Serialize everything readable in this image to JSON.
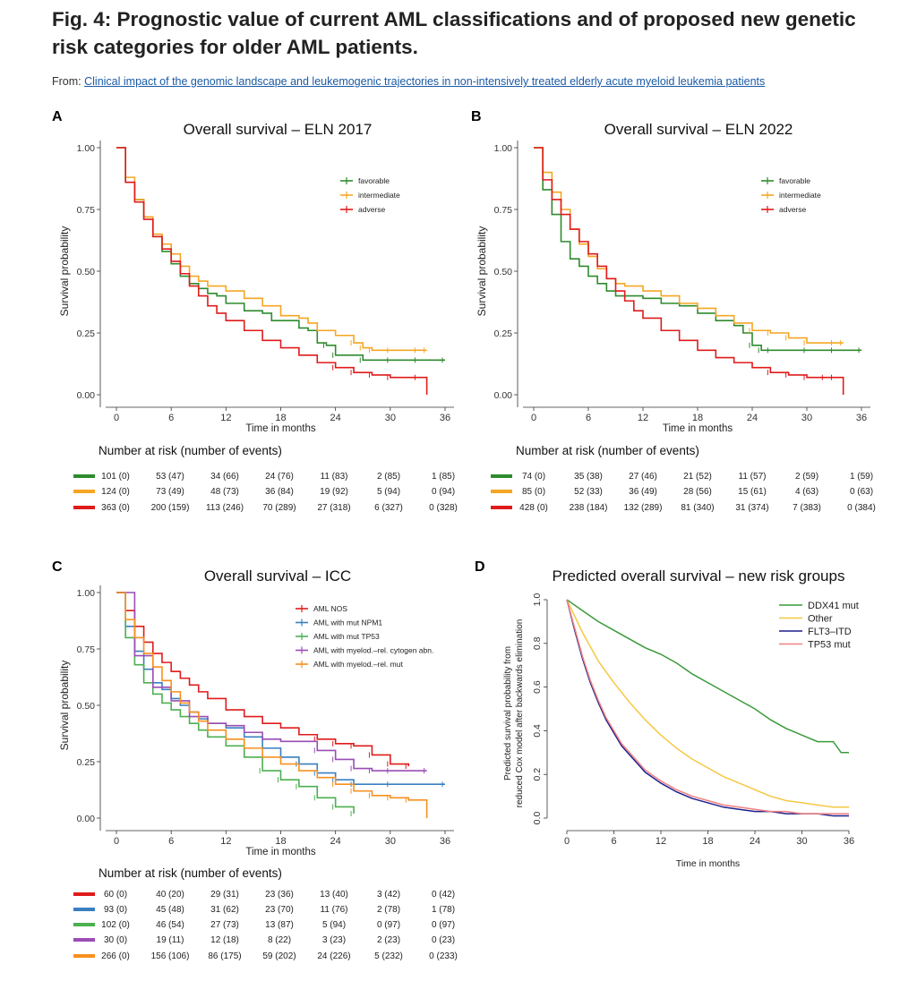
{
  "figure": {
    "title": "Fig. 4: Prognostic value of current AML classifications and of proposed new genetic risk categories for older AML patients.",
    "from_label": "From:",
    "source_link": "Clinical impact of the genomic landscape and leukemogenic trajectories in non-intensively treated elderly acute myeloid leukemia patients"
  },
  "colors": {
    "green": "#2e8b2e",
    "orange": "#f5a623",
    "red": "#e01b1b",
    "blue": "#3a7fc1",
    "lightgreen": "#4caf50",
    "purple": "#9b4db5",
    "orange2": "#f7901e",
    "darkblue": "#1f1f8c",
    "salmon": "#f08080",
    "dgreen": "#3a9a3a",
    "yellow": "#f5c842"
  },
  "chart_data": [
    {
      "panel": "A",
      "type": "line",
      "title": "Overall survival – ELN 2017",
      "xlabel": "Time in months",
      "ylabel": "Survival probability",
      "xlim": [
        0,
        36
      ],
      "ylim": [
        0,
        1
      ],
      "xticks": [
        "0",
        "6",
        "12",
        "18",
        "24",
        "30",
        "36"
      ],
      "yticks": [
        "0.00",
        "0.25",
        "0.50",
        "0.75",
        "1.00"
      ],
      "legend_position": "top-right",
      "series": [
        {
          "name": "favorable",
          "color": "green",
          "x": [
            0,
            1,
            2,
            3,
            4,
            5,
            6,
            7,
            8,
            9,
            10,
            11,
            12,
            14,
            16,
            17,
            18,
            20,
            21,
            22,
            23,
            24,
            27,
            30,
            33,
            36
          ],
          "y": [
            1,
            0.86,
            0.79,
            0.72,
            0.64,
            0.58,
            0.53,
            0.48,
            0.45,
            0.43,
            0.41,
            0.4,
            0.37,
            0.34,
            0.33,
            0.3,
            0.3,
            0.27,
            0.26,
            0.21,
            0.2,
            0.16,
            0.14,
            0.14,
            0.14,
            0.14
          ]
        },
        {
          "name": "intermediate",
          "color": "orange",
          "x": [
            0,
            1,
            2,
            3,
            4,
            5,
            6,
            7,
            8,
            9,
            10,
            12,
            14,
            16,
            18,
            20,
            21,
            22,
            24,
            26,
            27,
            28,
            30,
            33,
            34
          ],
          "y": [
            1,
            0.88,
            0.79,
            0.72,
            0.65,
            0.61,
            0.57,
            0.52,
            0.48,
            0.46,
            0.44,
            0.42,
            0.39,
            0.36,
            0.32,
            0.31,
            0.29,
            0.26,
            0.24,
            0.21,
            0.19,
            0.18,
            0.18,
            0.18,
            0.18
          ]
        },
        {
          "name": "adverse",
          "color": "red",
          "x": [
            0,
            1,
            2,
            3,
            4,
            5,
            6,
            7,
            8,
            9,
            10,
            11,
            12,
            14,
            16,
            18,
            20,
            22,
            24,
            26,
            28,
            30,
            33,
            34
          ],
          "y": [
            1,
            0.86,
            0.78,
            0.71,
            0.64,
            0.59,
            0.54,
            0.49,
            0.44,
            0.4,
            0.36,
            0.33,
            0.3,
            0.26,
            0.22,
            0.19,
            0.16,
            0.13,
            0.11,
            0.09,
            0.08,
            0.07,
            0.07,
            0.0
          ]
        }
      ],
      "risk_table": {
        "title": "Number at risk (number of events)",
        "rows": [
          {
            "color": "green",
            "values": [
              "101 (0)",
              "53 (47)",
              "34 (66)",
              "24 (76)",
              "11 (83)",
              "2 (85)",
              "1 (85)"
            ]
          },
          {
            "color": "orange",
            "values": [
              "124 (0)",
              "73 (49)",
              "48 (73)",
              "36 (84)",
              "19 (92)",
              "5 (94)",
              "0 (94)"
            ]
          },
          {
            "color": "red",
            "values": [
              "363 (0)",
              "200 (159)",
              "113 (246)",
              "70 (289)",
              "27 (318)",
              "6 (327)",
              "0 (328)"
            ]
          }
        ]
      }
    },
    {
      "panel": "B",
      "type": "line",
      "title": "Overall survival – ELN 2022",
      "xlabel": "Time in months",
      "ylabel": "Survival probability",
      "xlim": [
        0,
        36
      ],
      "ylim": [
        0,
        1
      ],
      "xticks": [
        "0",
        "6",
        "12",
        "18",
        "24",
        "30",
        "36"
      ],
      "yticks": [
        "0.00",
        "0.25",
        "0.50",
        "0.75",
        "1.00"
      ],
      "legend_position": "top-right",
      "series": [
        {
          "name": "favorable",
          "color": "green",
          "x": [
            0,
            1,
            2,
            3,
            4,
            5,
            6,
            7,
            8,
            9,
            10,
            12,
            14,
            16,
            18,
            20,
            22,
            23,
            24,
            25,
            26,
            30,
            33,
            36
          ],
          "y": [
            1,
            0.83,
            0.73,
            0.62,
            0.55,
            0.52,
            0.48,
            0.45,
            0.42,
            0.4,
            0.4,
            0.39,
            0.37,
            0.36,
            0.33,
            0.3,
            0.28,
            0.25,
            0.2,
            0.18,
            0.18,
            0.18,
            0.18,
            0.18
          ]
        },
        {
          "name": "intermediate",
          "color": "orange",
          "x": [
            0,
            1,
            2,
            3,
            4,
            5,
            6,
            7,
            8,
            9,
            10,
            12,
            14,
            16,
            18,
            20,
            22,
            24,
            26,
            28,
            30,
            33,
            34
          ],
          "y": [
            1,
            0.9,
            0.82,
            0.75,
            0.67,
            0.61,
            0.56,
            0.51,
            0.47,
            0.45,
            0.44,
            0.42,
            0.4,
            0.37,
            0.35,
            0.32,
            0.29,
            0.26,
            0.25,
            0.23,
            0.21,
            0.21,
            0.21
          ]
        },
        {
          "name": "adverse",
          "color": "red",
          "x": [
            0,
            1,
            2,
            3,
            4,
            5,
            6,
            7,
            8,
            9,
            10,
            11,
            12,
            14,
            16,
            18,
            20,
            22,
            24,
            26,
            28,
            30,
            32,
            33,
            34
          ],
          "y": [
            1,
            0.87,
            0.79,
            0.73,
            0.67,
            0.62,
            0.57,
            0.52,
            0.47,
            0.42,
            0.38,
            0.34,
            0.31,
            0.26,
            0.22,
            0.18,
            0.15,
            0.13,
            0.11,
            0.09,
            0.08,
            0.07,
            0.07,
            0.07,
            0.0
          ]
        }
      ],
      "risk_table": {
        "title": "Number at risk (number of events)",
        "rows": [
          {
            "color": "green",
            "values": [
              "74 (0)",
              "35 (38)",
              "27 (46)",
              "21 (52)",
              "11 (57)",
              "2 (59)",
              "1 (59)"
            ]
          },
          {
            "color": "orange",
            "values": [
              "85 (0)",
              "52 (33)",
              "36 (49)",
              "28 (56)",
              "15 (61)",
              "4 (63)",
              "0 (63)"
            ]
          },
          {
            "color": "red",
            "values": [
              "428 (0)",
              "238 (184)",
              "132 (289)",
              "81 (340)",
              "31 (374)",
              "7 (383)",
              "0 (384)"
            ]
          }
        ]
      }
    },
    {
      "panel": "C",
      "type": "line",
      "title": "Overall survival – ICC",
      "xlabel": "Time in months",
      "ylabel": "Survival probability",
      "xlim": [
        0,
        36
      ],
      "ylim": [
        0,
        1
      ],
      "xticks": [
        "0",
        "6",
        "12",
        "18",
        "24",
        "30",
        "36"
      ],
      "yticks": [
        "0.00",
        "0.25",
        "0.50",
        "0.75",
        "1.00"
      ],
      "legend_position": "top-right",
      "series": [
        {
          "name": "AML NOS",
          "color": "red",
          "x": [
            0,
            1,
            2,
            3,
            4,
            5,
            6,
            7,
            8,
            9,
            10,
            12,
            14,
            16,
            18,
            20,
            22,
            24,
            26,
            28,
            30,
            32
          ],
          "y": [
            1,
            0.92,
            0.85,
            0.78,
            0.73,
            0.69,
            0.65,
            0.62,
            0.59,
            0.56,
            0.53,
            0.48,
            0.45,
            0.42,
            0.4,
            0.37,
            0.35,
            0.33,
            0.32,
            0.28,
            0.24,
            0.23
          ]
        },
        {
          "name": "AML with mut NPM1",
          "color": "blue",
          "x": [
            0,
            1,
            2,
            3,
            4,
            5,
            6,
            7,
            8,
            9,
            10,
            12,
            14,
            16,
            18,
            20,
            22,
            24,
            26,
            30,
            36
          ],
          "y": [
            1,
            0.85,
            0.74,
            0.66,
            0.6,
            0.57,
            0.53,
            0.5,
            0.47,
            0.44,
            0.42,
            0.4,
            0.36,
            0.31,
            0.27,
            0.24,
            0.2,
            0.17,
            0.15,
            0.15,
            0.15
          ]
        },
        {
          "name": "AML with mut TP53",
          "color": "lightgreen",
          "x": [
            0,
            1,
            2,
            3,
            4,
            5,
            6,
            7,
            8,
            9,
            10,
            12,
            14,
            16,
            18,
            20,
            22,
            24,
            26
          ],
          "y": [
            1,
            0.8,
            0.68,
            0.6,
            0.55,
            0.51,
            0.48,
            0.45,
            0.42,
            0.39,
            0.36,
            0.32,
            0.27,
            0.21,
            0.17,
            0.14,
            0.09,
            0.05,
            0.02
          ]
        },
        {
          "name": "AML with myelod.–rel. cytogen abn.",
          "color": "purple",
          "x": [
            0,
            2,
            4,
            6,
            8,
            10,
            12,
            14,
            16,
            18,
            20,
            22,
            24,
            26,
            28,
            30,
            34
          ],
          "y": [
            1,
            0.72,
            0.58,
            0.52,
            0.45,
            0.42,
            0.41,
            0.38,
            0.35,
            0.34,
            0.34,
            0.3,
            0.26,
            0.22,
            0.21,
            0.21,
            0.21
          ]
        },
        {
          "name": "AML with myelod.–rel. mut",
          "color": "orange2",
          "x": [
            0,
            1,
            2,
            3,
            4,
            5,
            6,
            7,
            8,
            9,
            10,
            12,
            14,
            16,
            18,
            20,
            22,
            24,
            26,
            28,
            30,
            32,
            34
          ],
          "y": [
            1,
            0.88,
            0.8,
            0.73,
            0.67,
            0.61,
            0.56,
            0.51,
            0.47,
            0.43,
            0.39,
            0.35,
            0.31,
            0.27,
            0.24,
            0.21,
            0.18,
            0.15,
            0.12,
            0.1,
            0.09,
            0.08,
            0.0
          ]
        }
      ],
      "risk_table": {
        "title": "Number at risk (number of events)",
        "rows": [
          {
            "color": "red",
            "values": [
              "60 (0)",
              "40 (20)",
              "29 (31)",
              "23 (36)",
              "13 (40)",
              "3 (42)",
              "0 (42)"
            ]
          },
          {
            "color": "blue",
            "values": [
              "93 (0)",
              "45 (48)",
              "31 (62)",
              "23 (70)",
              "11 (76)",
              "2 (78)",
              "1 (78)"
            ]
          },
          {
            "color": "lightgreen",
            "values": [
              "102 (0)",
              "46 (54)",
              "27 (73)",
              "13 (87)",
              "5 (94)",
              "0 (97)",
              "0 (97)"
            ]
          },
          {
            "color": "purple",
            "values": [
              "30 (0)",
              "19 (11)",
              "12 (18)",
              "8 (22)",
              "3 (23)",
              "2 (23)",
              "0 (23)"
            ]
          },
          {
            "color": "orange2",
            "values": [
              "266 (0)",
              "156 (106)",
              "86 (175)",
              "59 (202)",
              "24 (226)",
              "5 (232)",
              "0 (233)"
            ]
          }
        ]
      }
    },
    {
      "panel": "D",
      "type": "line",
      "title": "Predicted overall survival – new risk groups",
      "xlabel": "Time in months",
      "ylabel": "Predicted survival probability from reduced Cox model after backwards elimination",
      "ylabel_lines": [
        "Predicted survival probability from",
        "reduced Cox model after backwards elimination"
      ],
      "xlim": [
        0,
        36
      ],
      "ylim": [
        0,
        1
      ],
      "xticks": [
        "0",
        "6",
        "12",
        "18",
        "24",
        "30",
        "36"
      ],
      "yticks": [
        "0.0",
        "0.2",
        "0.4",
        "0.6",
        "0.8",
        "1.0"
      ],
      "legend_position": "top-right",
      "series": [
        {
          "name": "DDX41 mut",
          "color": "dgreen",
          "x": [
            0,
            2,
            4,
            6,
            8,
            10,
            12,
            14,
            16,
            18,
            20,
            22,
            24,
            26,
            28,
            30,
            32,
            34,
            35,
            36
          ],
          "y": [
            1,
            0.95,
            0.9,
            0.86,
            0.82,
            0.78,
            0.75,
            0.71,
            0.66,
            0.62,
            0.58,
            0.54,
            0.5,
            0.45,
            0.41,
            0.38,
            0.35,
            0.35,
            0.3,
            0.3
          ]
        },
        {
          "name": "Other",
          "color": "yellow",
          "x": [
            0,
            2,
            4,
            6,
            8,
            10,
            12,
            14,
            16,
            18,
            20,
            22,
            24,
            26,
            28,
            30,
            32,
            34,
            36
          ],
          "y": [
            1,
            0.85,
            0.72,
            0.62,
            0.53,
            0.45,
            0.38,
            0.32,
            0.27,
            0.23,
            0.19,
            0.16,
            0.13,
            0.1,
            0.08,
            0.07,
            0.06,
            0.05,
            0.05
          ]
        },
        {
          "name": "FLT3–ITD",
          "color": "darkblue",
          "x": [
            0,
            1,
            2,
            3,
            4,
            5,
            6,
            7,
            8,
            9,
            10,
            12,
            14,
            16,
            18,
            20,
            22,
            24,
            26,
            28,
            30,
            32,
            34,
            36
          ],
          "y": [
            1,
            0.86,
            0.73,
            0.62,
            0.53,
            0.45,
            0.39,
            0.33,
            0.29,
            0.25,
            0.21,
            0.16,
            0.12,
            0.09,
            0.07,
            0.05,
            0.04,
            0.03,
            0.03,
            0.02,
            0.02,
            0.02,
            0.01,
            0.01
          ]
        },
        {
          "name": "TP53 mut",
          "color": "salmon",
          "x": [
            0,
            1,
            2,
            3,
            4,
            5,
            6,
            7,
            8,
            9,
            10,
            12,
            14,
            16,
            18,
            20,
            22,
            24,
            26,
            28,
            30,
            32,
            34,
            36
          ],
          "y": [
            1,
            0.87,
            0.74,
            0.63,
            0.54,
            0.46,
            0.4,
            0.34,
            0.3,
            0.26,
            0.22,
            0.17,
            0.13,
            0.1,
            0.08,
            0.06,
            0.05,
            0.04,
            0.03,
            0.03,
            0.02,
            0.02,
            0.02,
            0.02
          ]
        }
      ]
    }
  ]
}
